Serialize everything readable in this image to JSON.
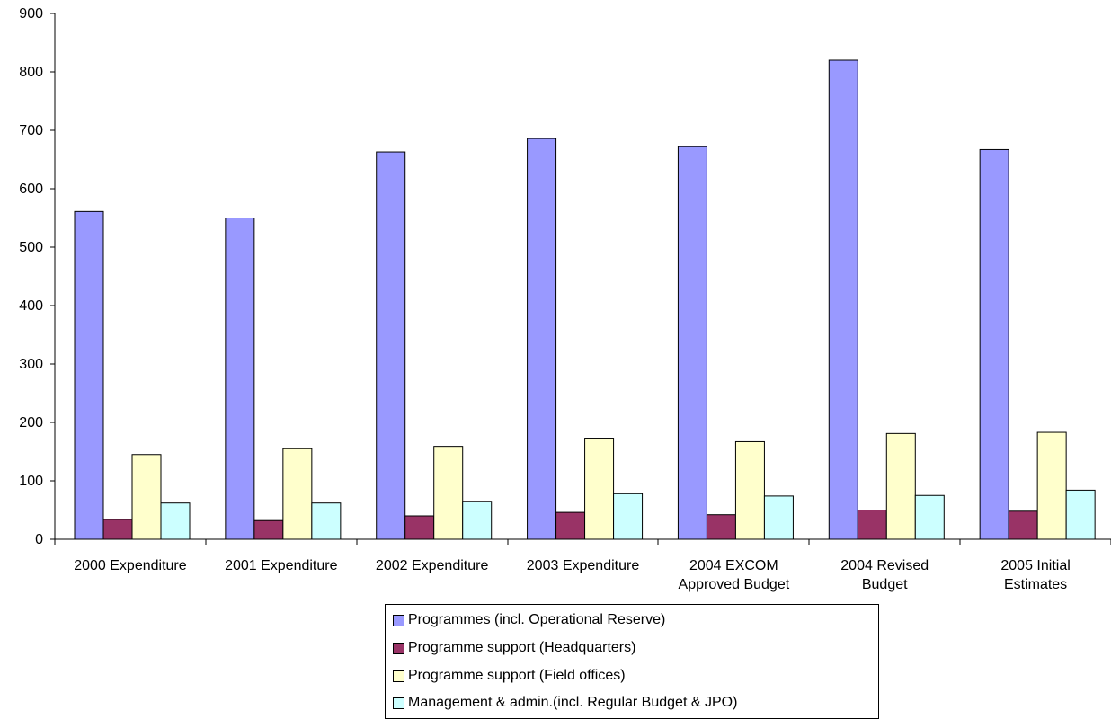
{
  "chart_data": {
    "type": "bar",
    "categories": [
      "2000 Expenditure",
      "2001 Expenditure",
      "2002 Expenditure",
      "2003 Expenditure",
      "2004 EXCOM Approved Budget",
      "2004 Revised Budget",
      "2005 Initial Estimates"
    ],
    "category_lines": [
      [
        "2000 Expenditure"
      ],
      [
        "2001 Expenditure"
      ],
      [
        "2002 Expenditure"
      ],
      [
        "2003 Expenditure"
      ],
      [
        "2004 EXCOM",
        "Approved Budget"
      ],
      [
        "2004 Revised",
        "Budget"
      ],
      [
        "2005 Initial",
        "Estimates"
      ]
    ],
    "series": [
      {
        "name": "Programmes (incl. Operational Reserve)",
        "color": "#9999ff",
        "values": [
          561,
          550,
          663,
          686,
          672,
          820,
          667
        ]
      },
      {
        "name": "Programme support (Headquarters)",
        "color": "#993366",
        "values": [
          34,
          32,
          40,
          46,
          42,
          50,
          48
        ]
      },
      {
        "name": "Programme support (Field offices)",
        "color": "#ffffcc",
        "values": [
          145,
          155,
          159,
          173,
          167,
          181,
          183
        ]
      },
      {
        "name": "Management & admin.(incl. Regular Budget & JPO)",
        "color": "#ccffff",
        "values": [
          62,
          62,
          65,
          78,
          74,
          75,
          84
        ]
      }
    ],
    "ylim": [
      0,
      900
    ],
    "yticks": [
      0,
      100,
      200,
      300,
      400,
      500,
      600,
      700,
      800,
      900
    ],
    "title": "",
    "xlabel": "",
    "ylabel": "",
    "grid": false,
    "legend_position": "bottom"
  }
}
